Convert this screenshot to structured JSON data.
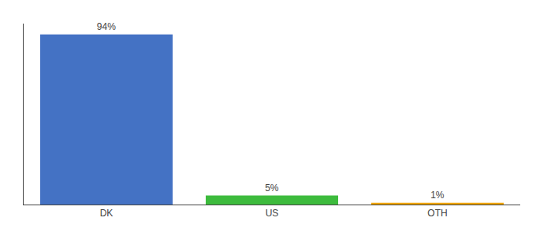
{
  "chart_data": {
    "type": "bar",
    "categories": [
      "DK",
      "US",
      "OTH"
    ],
    "values": [
      94,
      5,
      1
    ],
    "value_labels": [
      "94%",
      "5%",
      "1%"
    ],
    "colors": [
      "#4472c4",
      "#3dbb3d",
      "#f0a500"
    ],
    "ylim": [
      0,
      100
    ],
    "yticks": [],
    "data_labels": true,
    "tick_labels": "x",
    "grid": false
  }
}
